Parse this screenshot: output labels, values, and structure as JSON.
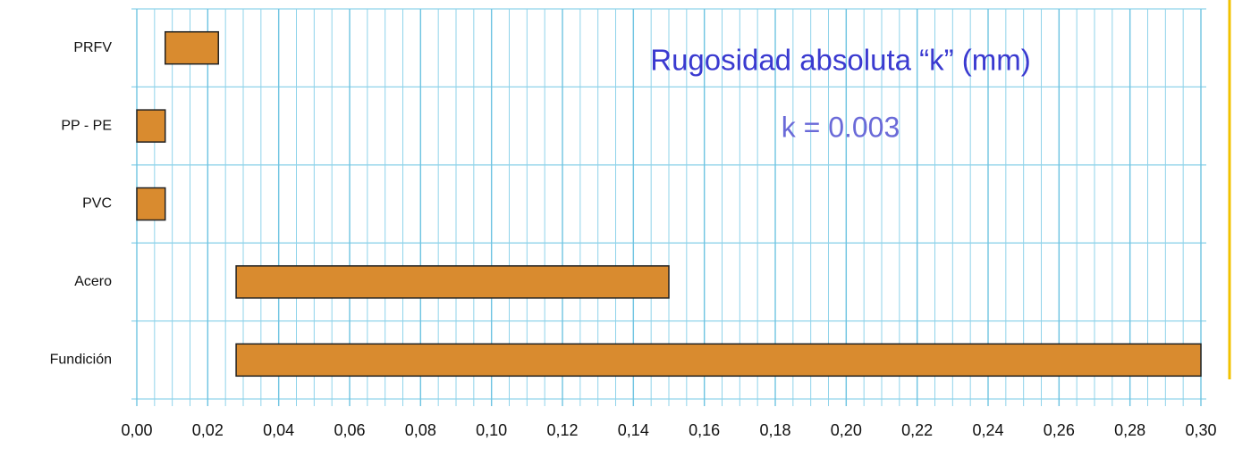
{
  "chart_data": {
    "type": "range_bar",
    "annotations": [
      "Rugosidad absoluta “k” (mm)",
      "k = 0.003"
    ],
    "categories": [
      "PRFV",
      "PP - PE",
      "PVC",
      "Acero",
      "Fundición"
    ],
    "starts": [
      0.008,
      0,
      0,
      0.028,
      0.028
    ],
    "ends": [
      0.023,
      0.008,
      0.008,
      0.15,
      0.3
    ],
    "color": "#d98b2f",
    "xlim": [
      0,
      0.3
    ],
    "xticks": [
      {
        "value": 0,
        "label": "0,00"
      },
      {
        "value": 0.02,
        "label": "0,02"
      },
      {
        "value": 0.04,
        "label": "0,04"
      },
      {
        "value": 0.06,
        "label": "0,06"
      },
      {
        "value": 0.08,
        "label": "0,08"
      },
      {
        "value": 0.1,
        "label": "0,10"
      },
      {
        "value": 0.12,
        "label": "0,12"
      },
      {
        "value": 0.14,
        "label": "0,14"
      },
      {
        "value": 0.16,
        "label": "0,16"
      },
      {
        "value": 0.18,
        "label": "0,18"
      },
      {
        "value": 0.2,
        "label": "0,20"
      },
      {
        "value": 0.22,
        "label": "0,22"
      },
      {
        "value": 0.24,
        "label": "0,24"
      },
      {
        "value": 0.26,
        "label": "0,26"
      },
      {
        "value": 0.28,
        "label": "0,28"
      },
      {
        "value": 0.3,
        "label": "0,30"
      }
    ],
    "xminorticks": [
      0,
      0.005,
      0.01,
      0.015,
      0.02,
      0.025,
      0.03,
      0.035,
      0.04,
      0.045,
      0.05,
      0.055,
      0.06,
      0.065,
      0.07,
      0.075,
      0.08,
      0.085,
      0.09,
      0.095,
      0.1,
      0.105,
      0.11,
      0.115,
      0.12,
      0.125,
      0.13,
      0.135,
      0.14,
      0.145,
      0.15,
      0.155,
      0.16,
      0.165,
      0.17,
      0.175,
      0.18,
      0.185,
      0.19,
      0.195,
      0.2,
      0.205,
      0.21,
      0.215,
      0.22,
      0.225,
      0.23,
      0.235,
      0.24,
      0.245,
      0.25,
      0.255,
      0.26,
      0.265,
      0.27,
      0.275,
      0.28,
      0.285,
      0.29,
      0.295,
      0.3
    ],
    "grid": true
  }
}
